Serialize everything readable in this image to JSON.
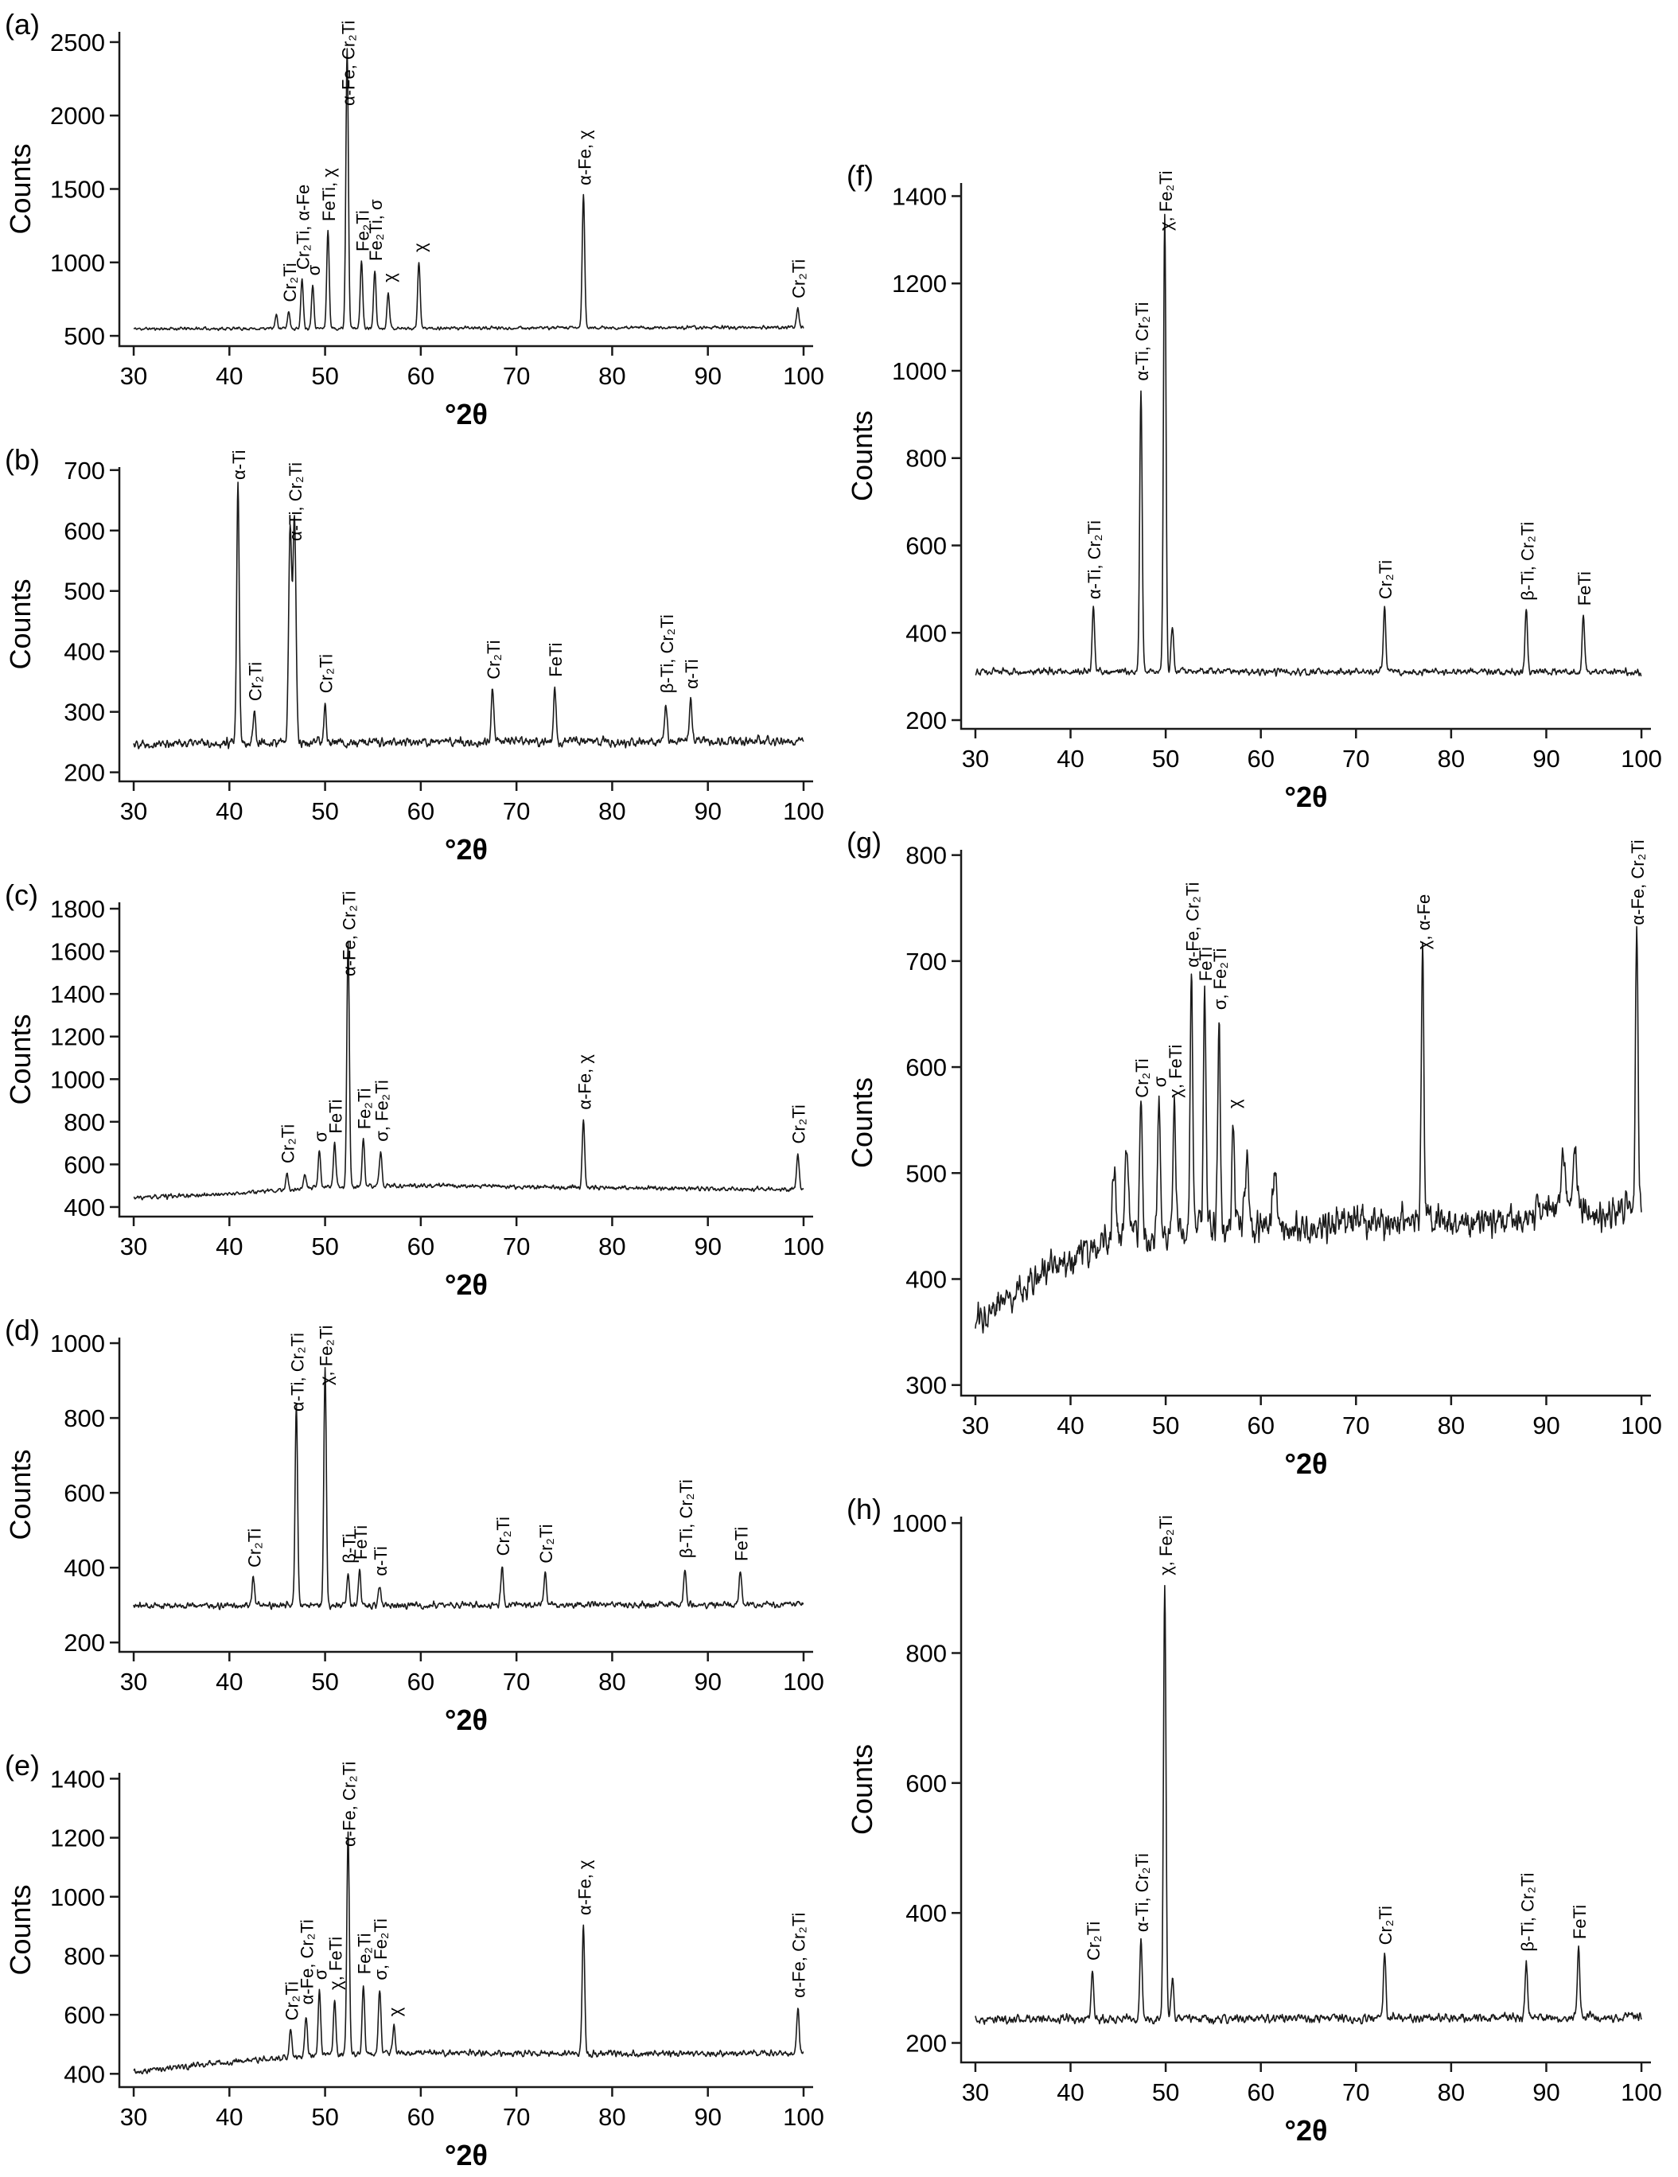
{
  "figure": {
    "background": "#ffffff",
    "line_color": "#1a1a1a",
    "text_color": "#000000"
  },
  "chart_data": [
    {
      "type": "line",
      "id": "a",
      "panel_label": "(a)",
      "xlabel": "°2θ",
      "ylabel": "Counts",
      "xlim": [
        28.5,
        101
      ],
      "xticks": [
        30,
        40,
        50,
        60,
        70,
        80,
        90,
        100
      ],
      "ylim": [
        430,
        2570
      ],
      "yticks": [
        500,
        1000,
        1500,
        2000,
        2500
      ],
      "grid": false,
      "legend": "none",
      "baseline": [
        [
          30,
          548
        ],
        [
          60,
          552
        ],
        [
          100,
          558
        ]
      ],
      "noise_amplitude": 13,
      "seed": 11,
      "peaks": [
        {
          "x": 44.9,
          "counts": 640
        },
        {
          "x": 46.2,
          "counts": 665,
          "label": "Cr₂Ti"
        },
        {
          "x": 47.6,
          "counts": 885,
          "label": "Cr₂Ti, α-Fe"
        },
        {
          "x": 48.7,
          "counts": 845,
          "label": "σ"
        },
        {
          "x": 50.3,
          "counts": 1215,
          "label": "FeTi, χ"
        },
        {
          "x": 52.3,
          "counts": 2460,
          "label": "α-Fe, Cr₂Ti"
        },
        {
          "x": 53.8,
          "counts": 1010,
          "label": "Fe₂Ti"
        },
        {
          "x": 55.2,
          "counts": 945,
          "label": "Fe₂Ti, σ"
        },
        {
          "x": 56.6,
          "counts": 800,
          "label": "χ"
        },
        {
          "x": 59.8,
          "counts": 1005,
          "label": "χ"
        },
        {
          "x": 77.0,
          "counts": 1460,
          "label": "α-Fe, χ"
        },
        {
          "x": 99.4,
          "counts": 690,
          "label": "Cr₂Ti"
        }
      ]
    },
    {
      "type": "line",
      "id": "b",
      "panel_label": "(b)",
      "xlabel": "°2θ",
      "ylabel": "Counts",
      "xlim": [
        28.5,
        101
      ],
      "xticks": [
        30,
        40,
        50,
        60,
        70,
        80,
        90,
        100
      ],
      "ylim": [
        185,
        705
      ],
      "yticks": [
        200,
        300,
        400,
        500,
        600,
        700
      ],
      "grid": false,
      "legend": "none",
      "baseline": [
        [
          30,
          248
        ],
        [
          100,
          252
        ]
      ],
      "noise_amplitude": 9,
      "seed": 22,
      "peaks": [
        {
          "x": 40.9,
          "counts": 680,
          "label": "α-Ti"
        },
        {
          "x": 42.6,
          "counts": 302,
          "label": "Cr₂Ti"
        },
        {
          "x": 46.35,
          "counts": 600,
          "w": 0.16
        },
        {
          "x": 46.8,
          "counts": 618,
          "w": 0.16,
          "label": "α-Ti, Cr₂Ti"
        },
        {
          "x": 50.0,
          "counts": 315,
          "label": "Cr₂Ti"
        },
        {
          "x": 67.5,
          "counts": 338,
          "label": "Cr₂Ti"
        },
        {
          "x": 74.0,
          "counts": 342,
          "label": "FeTi"
        },
        {
          "x": 85.6,
          "counts": 315,
          "label": "β-Ti, Cr₂Ti"
        },
        {
          "x": 88.2,
          "counts": 322,
          "label": "α-Ti"
        }
      ]
    },
    {
      "type": "line",
      "id": "c",
      "panel_label": "(c)",
      "xlabel": "°2θ",
      "ylabel": "Counts",
      "xlim": [
        28.5,
        101
      ],
      "xticks": [
        30,
        40,
        50,
        60,
        70,
        80,
        90,
        100
      ],
      "ylim": [
        355,
        1830
      ],
      "yticks": [
        400,
        600,
        800,
        1000,
        1200,
        1400,
        1600,
        1800
      ],
      "grid": false,
      "legend": "none",
      "baseline": [
        [
          30,
          442
        ],
        [
          40,
          462
        ],
        [
          50,
          492
        ],
        [
          60,
          502
        ],
        [
          75,
          492
        ],
        [
          100,
          482
        ]
      ],
      "noise_amplitude": 12,
      "seed": 33,
      "peaks": [
        {
          "x": 46.0,
          "counts": 560,
          "label": "Cr₂Ti"
        },
        {
          "x": 47.9,
          "counts": 560
        },
        {
          "x": 49.4,
          "counts": 660,
          "label": "σ"
        },
        {
          "x": 51.0,
          "counts": 700,
          "label": "FeTi"
        },
        {
          "x": 52.4,
          "counts": 1650,
          "label": "α-Fe, Cr₂Ti"
        },
        {
          "x": 54.0,
          "counts": 720,
          "label": "Fe₂Ti"
        },
        {
          "x": 55.8,
          "counts": 662,
          "label": "σ, Fe₂Ti"
        },
        {
          "x": 77.0,
          "counts": 812,
          "label": "α-Fe, χ"
        },
        {
          "x": 99.4,
          "counts": 652,
          "label": "Cr₂Ti"
        }
      ]
    },
    {
      "type": "line",
      "id": "d",
      "panel_label": "(d)",
      "xlabel": "°2θ",
      "ylabel": "Counts",
      "xlim": [
        28.5,
        101
      ],
      "xticks": [
        30,
        40,
        50,
        60,
        70,
        80,
        90,
        100
      ],
      "ylim": [
        175,
        1015
      ],
      "yticks": [
        200,
        400,
        600,
        800,
        1000
      ],
      "grid": false,
      "legend": "none",
      "baseline": [
        [
          30,
          298
        ],
        [
          100,
          302
        ]
      ],
      "noise_amplitude": 10,
      "seed": 44,
      "peaks": [
        {
          "x": 42.5,
          "counts": 375,
          "label": "Cr₂Ti"
        },
        {
          "x": 47.0,
          "counts": 835,
          "label": "α-Ti, Cr₂Ti"
        },
        {
          "x": 50.0,
          "counts": 932,
          "label": "χ, Fe₂Ti"
        },
        {
          "x": 52.4,
          "counts": 386,
          "label": "β-Ti"
        },
        {
          "x": 53.6,
          "counts": 396,
          "label": "FeTi"
        },
        {
          "x": 55.7,
          "counts": 352,
          "label": "α-Ti"
        },
        {
          "x": 68.5,
          "counts": 406,
          "label": "Cr₂Ti"
        },
        {
          "x": 73.0,
          "counts": 386,
          "label": "Cr₂Ti"
        },
        {
          "x": 87.6,
          "counts": 400,
          "label": "β-Ti, Cr₂Ti"
        },
        {
          "x": 93.4,
          "counts": 392,
          "label": "FeTi"
        }
      ]
    },
    {
      "type": "line",
      "id": "e",
      "panel_label": "(e)",
      "xlabel": "°2θ",
      "ylabel": "Counts",
      "xlim": [
        28.5,
        101
      ],
      "xticks": [
        30,
        40,
        50,
        60,
        70,
        80,
        90,
        100
      ],
      "ylim": [
        355,
        1420
      ],
      "yticks": [
        400,
        600,
        800,
        1000,
        1200,
        1400
      ],
      "grid": false,
      "legend": "none",
      "baseline": [
        [
          30,
          408
        ],
        [
          40,
          440
        ],
        [
          50,
          465
        ],
        [
          60,
          472
        ],
        [
          75,
          468
        ],
        [
          100,
          470
        ]
      ],
      "noise_amplitude": 12,
      "seed": 55,
      "peaks": [
        {
          "x": 46.4,
          "counts": 548,
          "label": "Cr₂Ti"
        },
        {
          "x": 48.0,
          "counts": 602,
          "label": "α-Fe, Cr₂Ti"
        },
        {
          "x": 49.4,
          "counts": 686,
          "label": "σ"
        },
        {
          "x": 51.0,
          "counts": 652,
          "label": "χ, FeTi"
        },
        {
          "x": 52.4,
          "counts": 1222,
          "label": "α-Fe, Cr₂Ti"
        },
        {
          "x": 54.0,
          "counts": 705,
          "label": "Fe₂Ti"
        },
        {
          "x": 55.7,
          "counts": 685,
          "label": "σ, Fe₂Ti"
        },
        {
          "x": 57.2,
          "counts": 562,
          "label": "χ"
        },
        {
          "x": 77.0,
          "counts": 905,
          "label": "α-Fe, χ"
        },
        {
          "x": 99.4,
          "counts": 625,
          "label": "α-Fe, Cr₂Ti"
        }
      ]
    },
    {
      "type": "line",
      "id": "f",
      "panel_label": "(f)",
      "xlabel": "°2θ",
      "ylabel": "Counts",
      "xlim": [
        28.5,
        101
      ],
      "xticks": [
        30,
        40,
        50,
        60,
        70,
        80,
        90,
        100
      ],
      "ylim": [
        180,
        1430
      ],
      "yticks": [
        200,
        400,
        600,
        800,
        1000,
        1200,
        1400
      ],
      "grid": false,
      "legend": "none",
      "baseline": [
        [
          30,
          312
        ],
        [
          100,
          310
        ]
      ],
      "noise_amplitude": 9,
      "seed": 66,
      "peaks": [
        {
          "x": 42.4,
          "counts": 455,
          "label": "α-Ti, Cr₂Ti"
        },
        {
          "x": 47.4,
          "counts": 955,
          "label": "α-Ti, Cr₂Ti"
        },
        {
          "x": 49.9,
          "counts": 1365,
          "label": "χ, Fe₂Ti"
        },
        {
          "x": 50.7,
          "counts": 420
        },
        {
          "x": 73.0,
          "counts": 455,
          "label": "Cr₂Ti"
        },
        {
          "x": 87.9,
          "counts": 452,
          "label": "β-Ti, Cr₂Ti"
        },
        {
          "x": 93.9,
          "counts": 440,
          "label": "FeTi"
        }
      ]
    },
    {
      "type": "line",
      "id": "g",
      "panel_label": "(g)",
      "xlabel": "°2θ",
      "ylabel": "Counts",
      "xlim": [
        28.5,
        101
      ],
      "xticks": [
        30,
        40,
        50,
        60,
        70,
        80,
        90,
        100
      ],
      "ylim": [
        290,
        805
      ],
      "yticks": [
        300,
        400,
        500,
        600,
        700,
        800
      ],
      "grid": false,
      "legend": "none",
      "baseline": [
        [
          30,
          362
        ],
        [
          36,
          400
        ],
        [
          42,
          428
        ],
        [
          48,
          442
        ],
        [
          55,
          452
        ],
        [
          65,
          448
        ],
        [
          75,
          456
        ],
        [
          85,
          452
        ],
        [
          91,
          468
        ],
        [
          95,
          462
        ],
        [
          100,
          468
        ]
      ],
      "noise_amplitude": 18,
      "seed": 77,
      "peaks": [
        {
          "x": 44.6,
          "counts": 505,
          "w": 0.2
        },
        {
          "x": 45.9,
          "counts": 522,
          "w": 0.2
        },
        {
          "x": 47.4,
          "counts": 562,
          "label": "Cr₂Ti"
        },
        {
          "x": 49.3,
          "counts": 572,
          "label": "σ"
        },
        {
          "x": 50.9,
          "counts": 562,
          "label": "χ, FeTi"
        },
        {
          "x": 52.7,
          "counts": 685,
          "label": "α-Fe, Cr₂Ti"
        },
        {
          "x": 54.1,
          "counts": 672,
          "label": "FeTi"
        },
        {
          "x": 55.6,
          "counts": 645,
          "label": "σ, Fe₂Ti"
        },
        {
          "x": 57.1,
          "counts": 552,
          "label": "χ"
        },
        {
          "x": 58.5,
          "counts": 505,
          "w": 0.2
        },
        {
          "x": 61.5,
          "counts": 498,
          "w": 0.2
        },
        {
          "x": 77.0,
          "counts": 702,
          "label": "χ, α-Fe"
        },
        {
          "x": 91.8,
          "counts": 522,
          "w": 0.2
        },
        {
          "x": 93.0,
          "counts": 532,
          "w": 0.2
        },
        {
          "x": 99.5,
          "counts": 725,
          "label": "α-Fe, Cr₂Ti"
        }
      ]
    },
    {
      "type": "line",
      "id": "h",
      "panel_label": "(h)",
      "xlabel": "°2θ",
      "ylabel": "Counts",
      "xlim": [
        28.5,
        101
      ],
      "xticks": [
        30,
        40,
        50,
        60,
        70,
        80,
        90,
        100
      ],
      "ylim": [
        170,
        1010
      ],
      "yticks": [
        200,
        400,
        600,
        800,
        1000
      ],
      "grid": false,
      "legend": "none",
      "baseline": [
        [
          30,
          236
        ],
        [
          100,
          240
        ]
      ],
      "noise_amplitude": 8,
      "seed": 88,
      "peaks": [
        {
          "x": 42.3,
          "counts": 312,
          "label": "Cr₂Ti"
        },
        {
          "x": 47.4,
          "counts": 356,
          "label": "α-Ti, Cr₂Ti"
        },
        {
          "x": 49.9,
          "counts": 905,
          "label": "χ, Fe₂Ti"
        },
        {
          "x": 50.7,
          "counts": 300
        },
        {
          "x": 73.0,
          "counts": 336,
          "label": "Cr₂Ti"
        },
        {
          "x": 87.9,
          "counts": 326,
          "label": "β-Ti, Cr₂Ti"
        },
        {
          "x": 93.4,
          "counts": 345,
          "label": "FeTi"
        }
      ]
    }
  ]
}
